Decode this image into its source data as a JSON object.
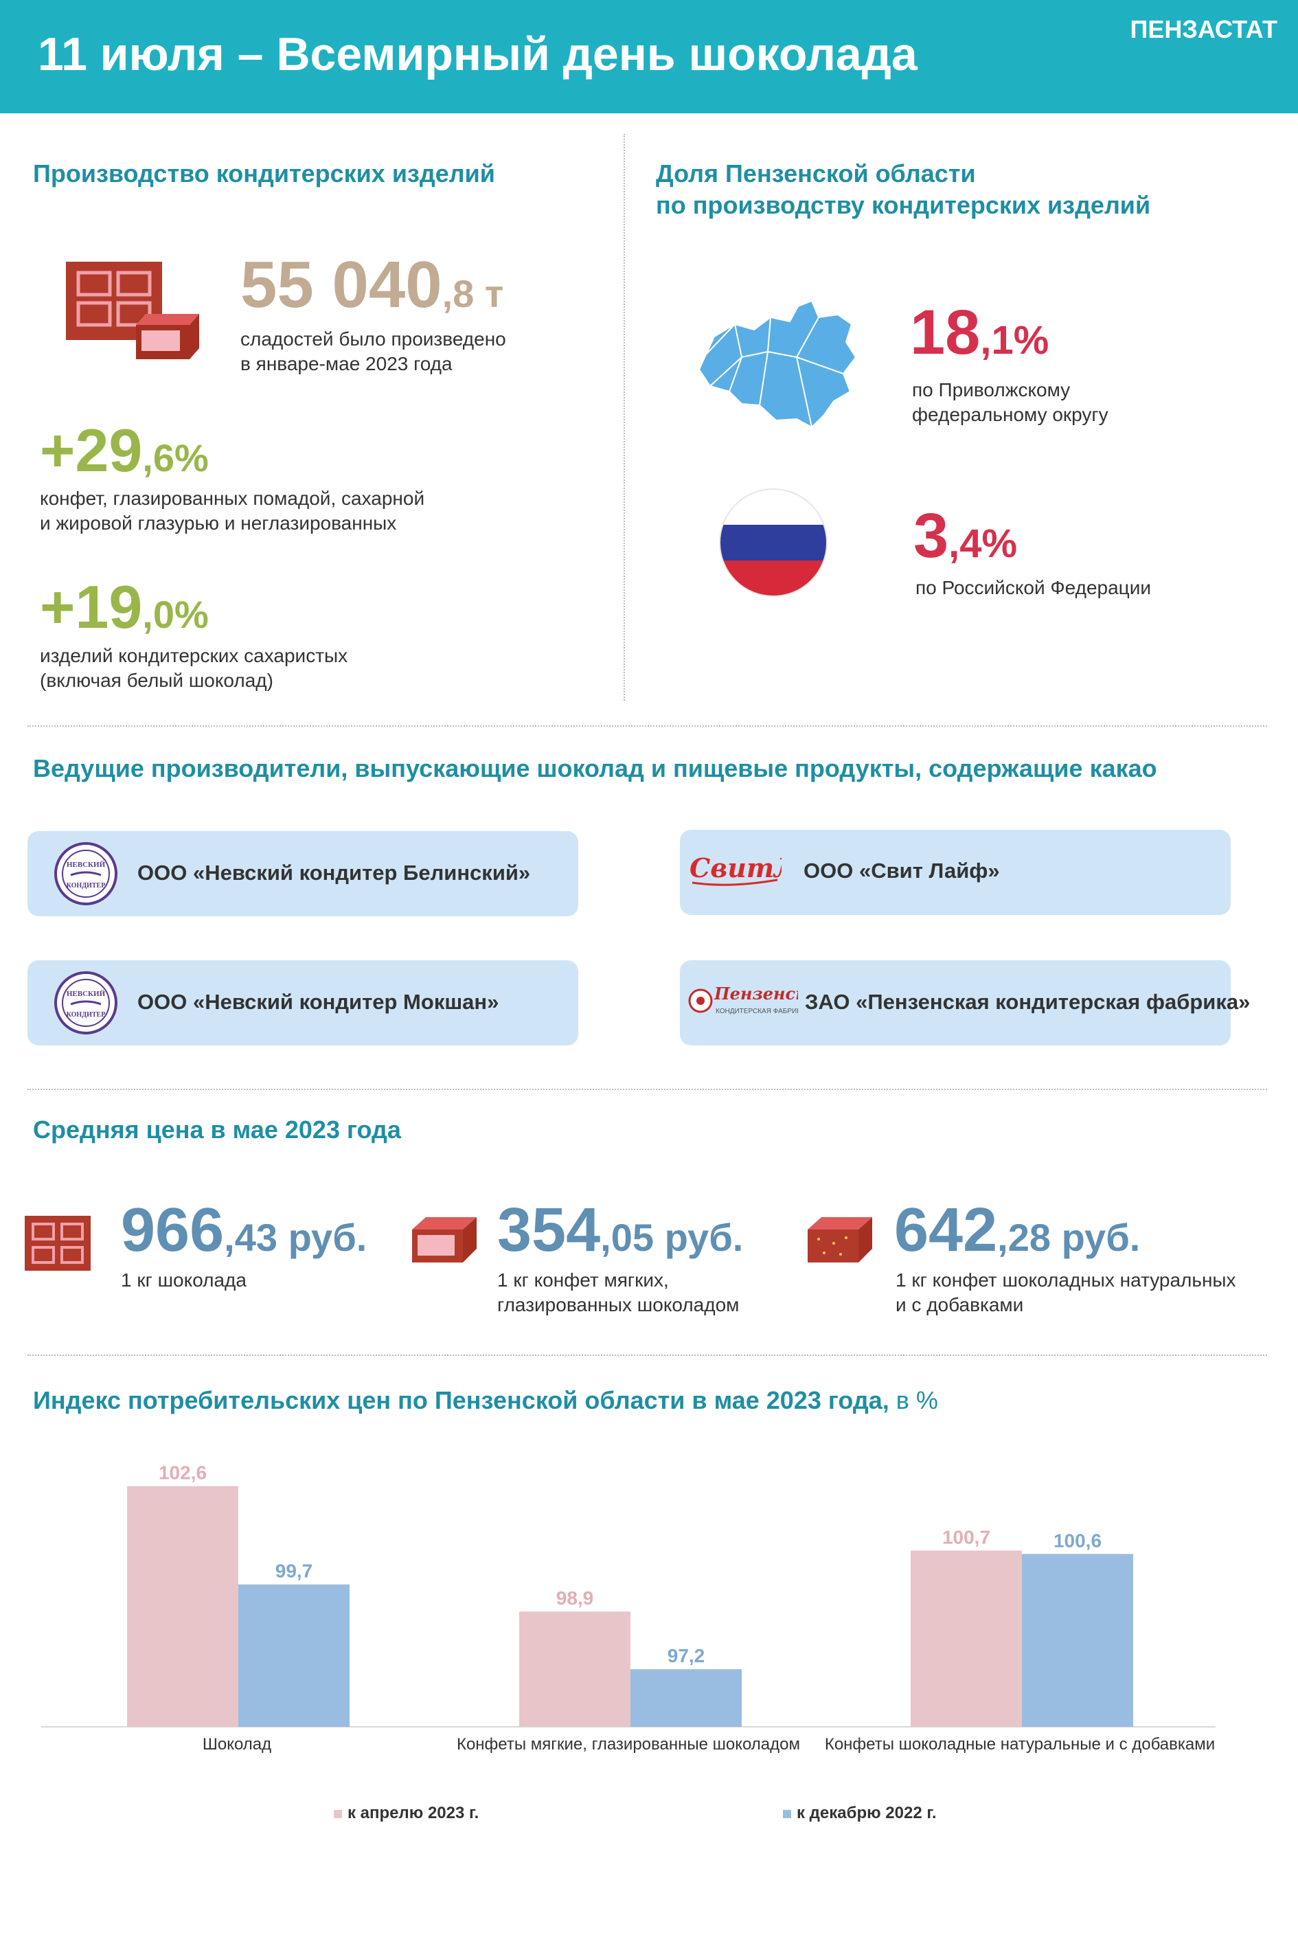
{
  "header": {
    "title": "11 июля – Всемирный день шоколада",
    "org": "ПЕНЗАСТАТ"
  },
  "production": {
    "title": "Производство кондитерских изделий",
    "total": {
      "int": "55 040",
      "dec": ",8 т",
      "desc1": "сладостей было произведено",
      "desc2": "в январе-мае 2023 года"
    },
    "candy": {
      "int": "+29",
      "dec": ",6%",
      "desc1": "конфет, глазированных помадой, сахарной",
      "desc2": "и жировой глазурью и неглазированных"
    },
    "sugar": {
      "int": "+19",
      "dec": ",0%",
      "desc1": "изделий кондитерских сахаристых",
      "desc2": "(включая белый шоколад)"
    }
  },
  "share": {
    "title1": "Доля Пензенской области",
    "title2": "по производству кондитерских изделий",
    "pfo": {
      "int": "18",
      "dec": ",1%",
      "desc1": "по Приволжскому",
      "desc2": "федеральному  округу"
    },
    "rf": {
      "int": "3",
      "dec": ",4%",
      "desc1": "по Российской Федерации"
    }
  },
  "producers": {
    "title": "Ведущие производители, выпускающие шоколад и пищевые продукты, содержащие какао",
    "items": [
      {
        "name": "ООО «Невский кондитер Белинский»",
        "logo_text": "НЕВСКИЙ КОНДИТЕР"
      },
      {
        "name": "ООО «Свит Лайф»",
        "logo_text": "СвитЛайф"
      },
      {
        "name": "ООО «Невский кондитер Мокшан»",
        "logo_text": "НЕВСКИЙ КОНДИТЕР"
      },
      {
        "name": "ЗАО «Пензенская кондитерская фабрика»",
        "logo_text": "Пензенская",
        "logo_sub": "КОНДИТЕРСКАЯ ФАБРИКА"
      }
    ]
  },
  "prices": {
    "title": "Средняя цена в мае 2023 года",
    "items": [
      {
        "int": "966",
        "dec": ",43 руб.",
        "desc1": "1 кг шоколада",
        "desc2": ""
      },
      {
        "int": "354",
        "dec": ",05 руб.",
        "desc1": "1 кг конфет мягких,",
        "desc2": "глазированных  шоколадом"
      },
      {
        "int": "642",
        "dec": ",28 руб.",
        "desc1": "1 кг конфет шоколадных  натуральных",
        "desc2": "и с добавками"
      }
    ]
  },
  "cpi": {
    "title": "Индекс потребительских цен по Пензенской области в мае 2023 года,",
    "unit": " в %"
  },
  "colors": {
    "teal": "#1fb1c2",
    "pink": "#e8c5c9",
    "blue": "#99bde0",
    "green": "#9ab64a",
    "red": "#d6304d",
    "tan": "#c2ab93",
    "steel": "#5f8fb3"
  },
  "chart_data": {
    "type": "bar",
    "categories": [
      "Шоколад",
      "Конфеты мягкие, глазированные шоколадом",
      "Конфеты шоколадные натуральные и с добавками"
    ],
    "series": [
      {
        "name": "к апрелю 2023 г.",
        "values": [
          102.6,
          98.9,
          100.7
        ],
        "labels": [
          "102,6",
          "98,9",
          "100,7"
        ]
      },
      {
        "name": "к декабрю 2022 г.",
        "values": [
          99.7,
          97.2,
          100.6
        ],
        "labels": [
          "99,7",
          "97,2",
          "100,6"
        ]
      }
    ],
    "ylim": [
      95.5,
      103.2
    ],
    "legend": "bottom"
  }
}
